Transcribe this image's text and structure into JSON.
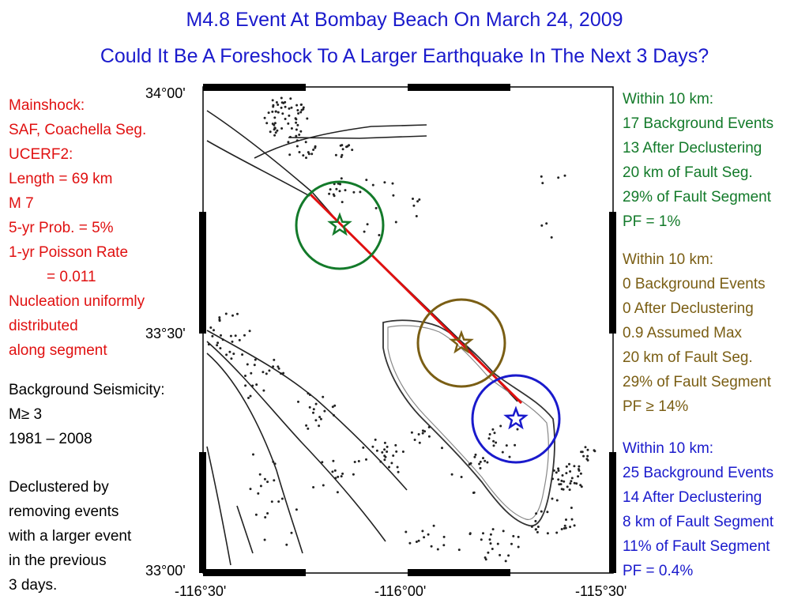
{
  "title": {
    "line1": "M4.8 Event At Bombay Beach On March 24, 2009",
    "line2": "Could It Be A Foreshock To A Larger Earthquake In The Next 3 Days?"
  },
  "left_red": {
    "lines": [
      "Mainshock:",
      "SAF, Coachella Seg.",
      "UCERF2:",
      "Length = 69 km",
      "M 7",
      "5-yr Prob. = 5%",
      "1-yr Poisson Rate",
      "= 0.011",
      "Nucleation uniformly",
      "distributed",
      "along segment"
    ]
  },
  "left_black": {
    "lines": [
      "Background Seismicity:",
      "M≥ 3",
      "1981 – 2008",
      "Declustered by",
      "removing events",
      "with a larger event",
      "in the previous",
      "3 days."
    ]
  },
  "right_green": {
    "lines": [
      "Within 10 km:",
      "17 Background Events",
      "13 After Declustering",
      "20 km of Fault Seg.",
      "29% of Fault Segment",
      "PF = 1%"
    ]
  },
  "right_olive": {
    "lines": [
      "Within 10 km:",
      "0 Background Events",
      "0 After Declustering",
      "0.9 Assumed Max",
      "20 km of Fault Seg.",
      "29% of Fault Segment",
      "PF ≥ 14%"
    ]
  },
  "right_blue": {
    "lines": [
      "Within 10 km:",
      "25 Background Events",
      "14 After Declustering",
      "8 km of Fault Segment",
      "11% of Fault Segment",
      "PF = 0.4%"
    ]
  },
  "axes": {
    "lat_labels": [
      "34°00'",
      "33°30'",
      "33°00'"
    ],
    "lon_labels": [
      "-116°30'",
      "-116°00'",
      "-115°30'"
    ]
  },
  "colors": {
    "title": "#1a1acc",
    "mainshock_text": "#e01010",
    "fault_segment": "#e01010",
    "green_circle": "#137a2a",
    "olive_circle": "#7a5e14",
    "blue_circle": "#1a1acc"
  },
  "map_features": {
    "markers": [
      "green-star-marker",
      "olive-star-marker",
      "blue-star-marker"
    ],
    "circles": [
      "green-10km-circle",
      "olive-10km-circle",
      "blue-10km-circle"
    ],
    "icons": [
      "star-icon"
    ]
  }
}
